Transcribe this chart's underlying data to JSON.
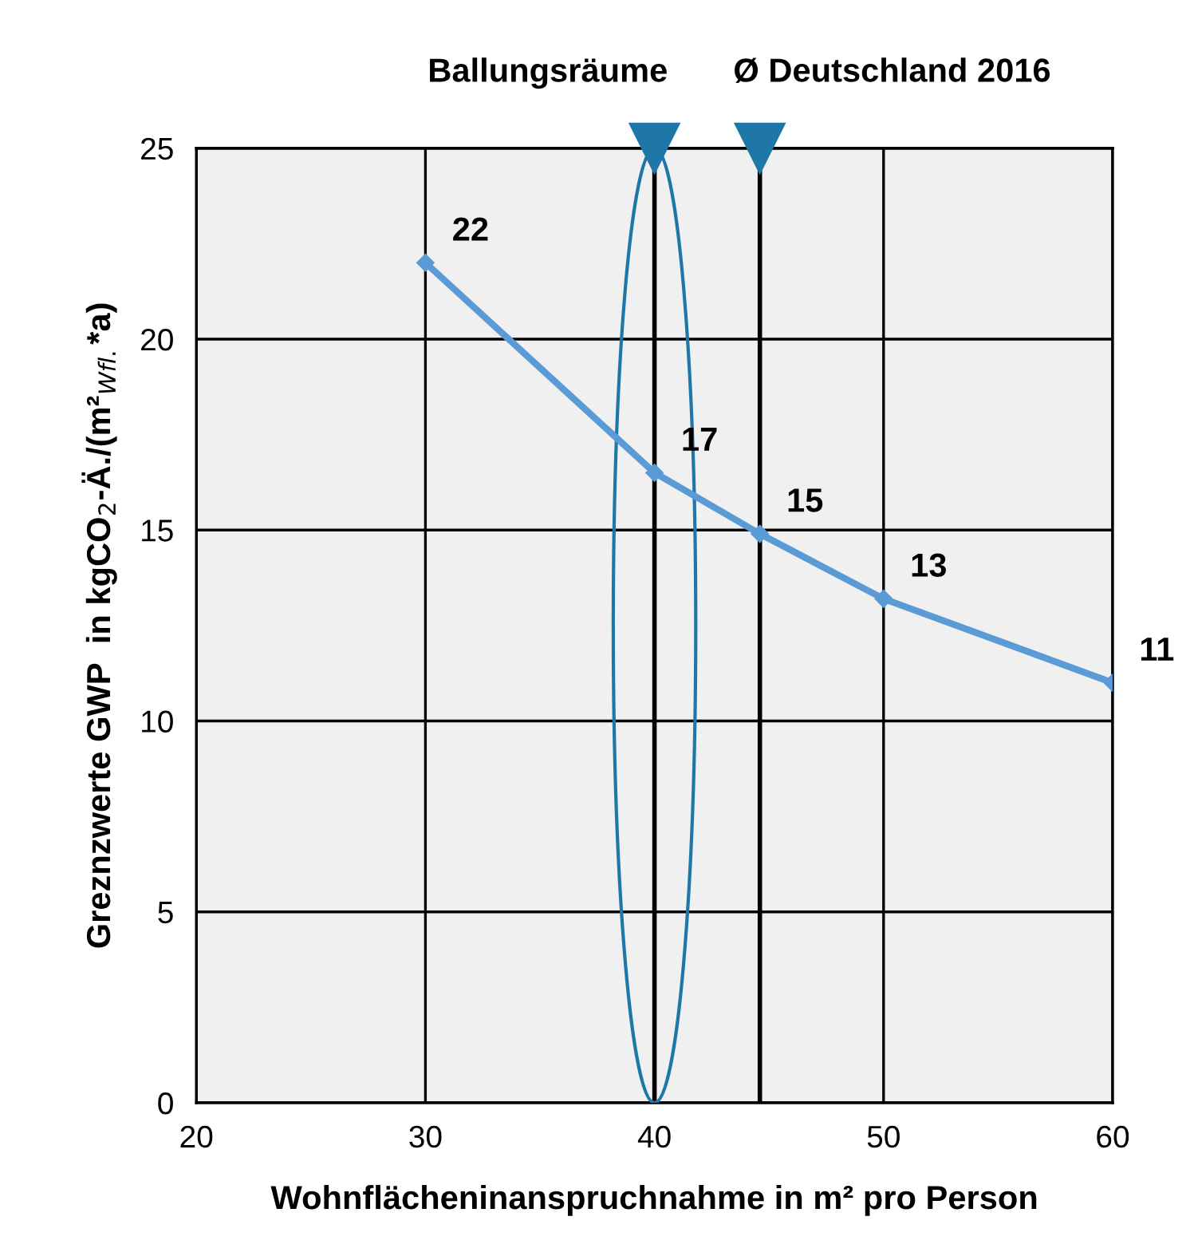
{
  "chart_data": {
    "type": "line",
    "xlabel": "Wohnflächeninanspruchnahme in m² pro Person",
    "ylabel": "Greznzwerte GWP  in kgCO$_{2}$-Ä./(m²$_{Wfl.}$*a)",
    "x": [
      30,
      40,
      44.6,
      50,
      60
    ],
    "series": [
      {
        "color": "#5b9bd5",
        "values": [
          22,
          16.5,
          14.9,
          13.2,
          11.0
        ],
        "value_labels": [
          "22",
          "17",
          "15",
          "13",
          "11"
        ]
      }
    ],
    "xlim": [
      20,
      60
    ],
    "xticks": [
      20,
      30,
      40,
      50,
      60
    ],
    "ylim": [
      0,
      25
    ],
    "yticks": [
      0,
      5,
      10,
      15,
      20,
      25
    ],
    "grid": true,
    "marker": "diamond",
    "line_style": "solid",
    "ref_lines": [
      {
        "axis": "x",
        "value": 40,
        "label": "Ballungsräume",
        "color": "#000000"
      },
      {
        "axis": "x",
        "value": 44.6,
        "label": "Ø Deutschland 2016",
        "color": "#000000"
      }
    ]
  }
}
